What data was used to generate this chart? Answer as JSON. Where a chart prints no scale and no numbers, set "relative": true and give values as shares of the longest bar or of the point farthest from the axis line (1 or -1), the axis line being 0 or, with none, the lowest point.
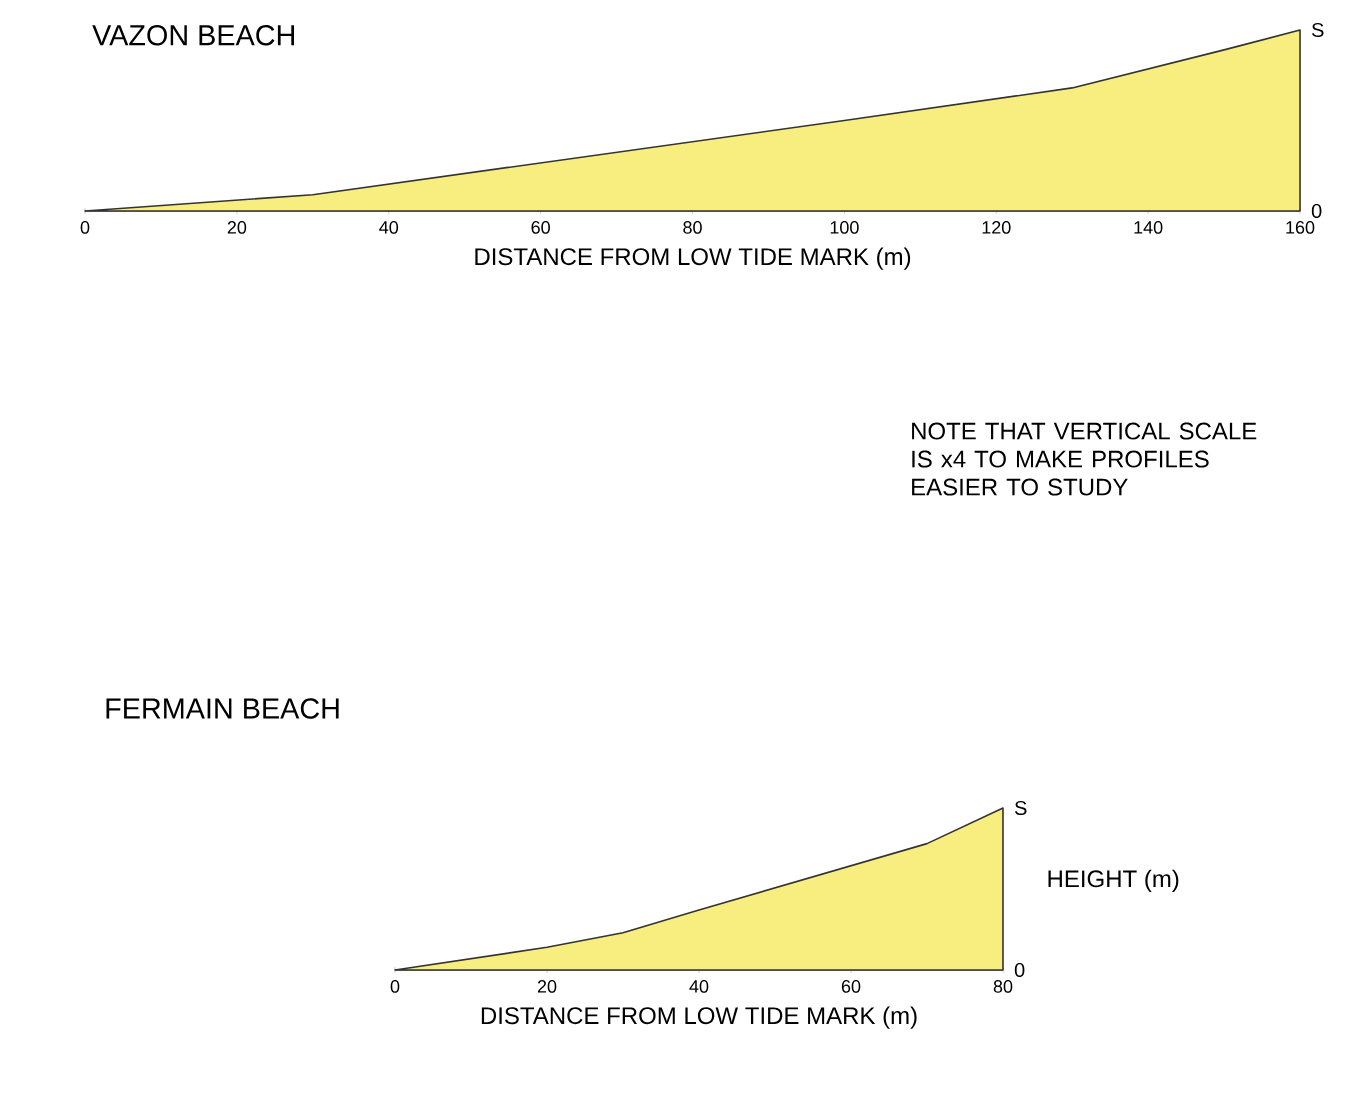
{
  "chart_data": [
    {
      "type": "area",
      "title": "VAZON BEACH",
      "xlabel": "DISTANCE FROM LOW TIDE MARK (m)",
      "relative": true,
      "color": "#f7ee7f",
      "x": [
        0,
        30,
        100,
        130,
        150,
        160
      ],
      "values": [
        0,
        0.09,
        0.5,
        0.68,
        0.89,
        1
      ],
      "xlim": [
        0,
        160
      ],
      "xticks": [
        0,
        20,
        40,
        60,
        80,
        100,
        120,
        140,
        160
      ],
      "annotations": [
        "S",
        "0",
        "NOTE THAT VERTICAL SCALE IS x4 TO MAKE PROFILES EASIER TO STUDY"
      ]
    },
    {
      "type": "area",
      "title": "FERMAIN BEACH",
      "xlabel": "DISTANCE FROM LOW TIDE MARK (m)",
      "ylabel": "HEIGHT (m)",
      "relative": true,
      "color": "#f7ee7f",
      "x": [
        0,
        20,
        30,
        40,
        70,
        80
      ],
      "values": [
        0,
        0.14,
        0.23,
        0.37,
        0.78,
        1
      ],
      "xlim": [
        0,
        80
      ],
      "xticks": [
        0,
        20,
        40,
        60,
        80
      ],
      "annotations": [
        "S",
        "0"
      ]
    }
  ]
}
